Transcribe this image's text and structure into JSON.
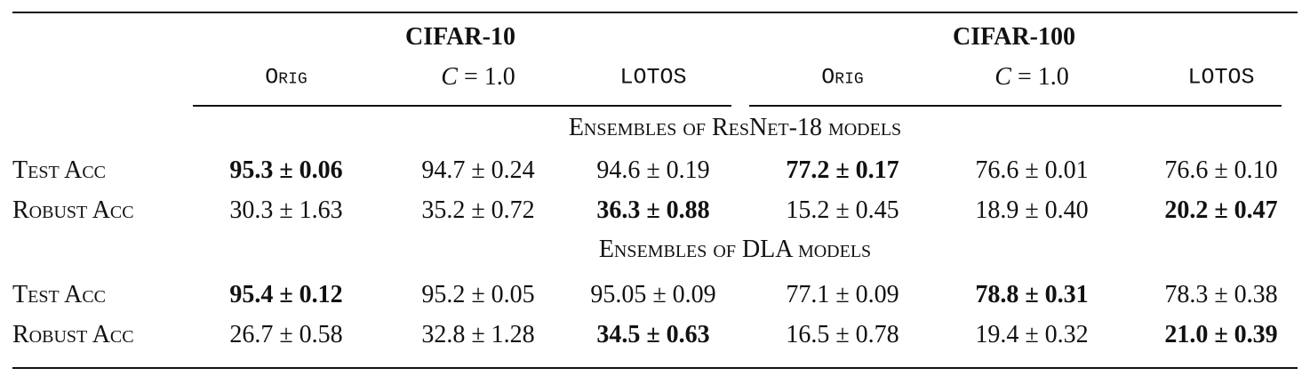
{
  "table": {
    "groups": [
      {
        "title": "CIFAR-10",
        "columns": [
          "Orig",
          "C = 1.0",
          "LOTOS"
        ]
      },
      {
        "title": "CIFAR-100",
        "columns": [
          "Orig",
          "C = 1.0",
          "LOTOS"
        ]
      }
    ],
    "sections": [
      {
        "title": "Ensembles of ResNet-18 models",
        "rows": [
          {
            "label": "Test Acc",
            "cells": [
              {
                "text": "95.3 ± 0.06",
                "bold": true
              },
              {
                "text": "94.7 ± 0.24",
                "bold": false
              },
              {
                "text": "94.6 ± 0.19",
                "bold": false
              },
              {
                "text": "77.2 ± 0.17",
                "bold": true
              },
              {
                "text": "76.6 ± 0.01",
                "bold": false
              },
              {
                "text": "76.6 ± 0.10",
                "bold": false
              }
            ]
          },
          {
            "label": "Robust Acc",
            "cells": [
              {
                "text": "30.3 ± 1.63",
                "bold": false
              },
              {
                "text": "35.2 ± 0.72",
                "bold": false
              },
              {
                "text": "36.3 ± 0.88",
                "bold": true
              },
              {
                "text": "15.2 ± 0.45",
                "bold": false
              },
              {
                "text": "18.9 ± 0.40",
                "bold": false
              },
              {
                "text": "20.2 ± 0.47",
                "bold": true
              }
            ]
          }
        ]
      },
      {
        "title": "Ensembles of DLA models",
        "rows": [
          {
            "label": "Test Acc",
            "cells": [
              {
                "text": "95.4 ± 0.12",
                "bold": true
              },
              {
                "text": "95.2 ± 0.05",
                "bold": false
              },
              {
                "text": "95.05 ± 0.09",
                "bold": false
              },
              {
                "text": "77.1 ± 0.09",
                "bold": false
              },
              {
                "text": "78.8 ± 0.31",
                "bold": true
              },
              {
                "text": "78.3 ± 0.38",
                "bold": false
              }
            ]
          },
          {
            "label": "Robust Acc",
            "cells": [
              {
                "text": "26.7 ± 0.58",
                "bold": false
              },
              {
                "text": "32.8 ± 1.28",
                "bold": false
              },
              {
                "text": "34.5 ± 0.63",
                "bold": true
              },
              {
                "text": "16.5 ± 0.78",
                "bold": false
              },
              {
                "text": "19.4 ± 0.32",
                "bold": false
              },
              {
                "text": "21.0 ± 0.39",
                "bold": true
              }
            ]
          }
        ]
      }
    ]
  }
}
